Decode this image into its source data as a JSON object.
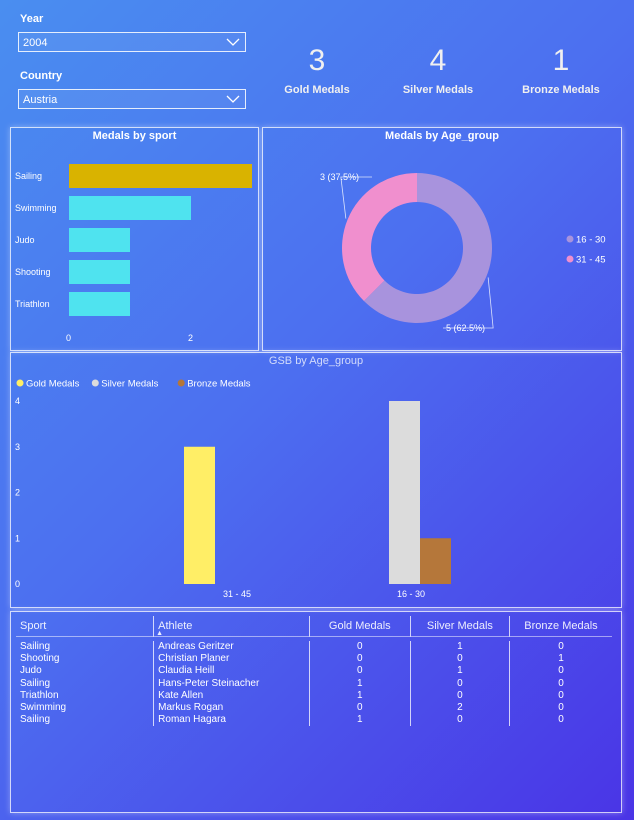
{
  "filters": {
    "year": {
      "label": "Year",
      "value": "2004"
    },
    "country": {
      "label": "Country",
      "value": "Austria"
    }
  },
  "kpis": [
    {
      "value": "3",
      "label": "Gold Medals"
    },
    {
      "value": "4",
      "label": "Silver Medals"
    },
    {
      "value": "1",
      "label": "Bronze Medals"
    }
  ],
  "colors": {
    "sailing_bar": "#d9b300",
    "other_bar": "#4fe3ef",
    "age_16_30": "#a893dd",
    "age_31_45": "#f08fce",
    "gold": "#ffee66",
    "silver": "#dcdcdc",
    "bronze": "#b5773a"
  },
  "medals_by_sport": {
    "title": "Medals by sport",
    "chart_data": {
      "type": "bar",
      "orientation": "horizontal",
      "categories": [
        "Sailing",
        "Swimming",
        "Judo",
        "Shooting",
        "Triathlon"
      ],
      "values": [
        3,
        2,
        1,
        1,
        1
      ],
      "xticks": [
        "0",
        "2"
      ],
      "xlim": [
        0,
        3
      ]
    }
  },
  "medals_by_age": {
    "title": "Medals by Age_group",
    "chart_data": {
      "type": "pie",
      "donut": true,
      "labels": [
        "16 - 30",
        "31 - 45"
      ],
      "values": [
        5,
        3
      ],
      "data_labels": [
        "5 (62.5%)",
        "3 (37.5%)"
      ],
      "legend_position": "right"
    }
  },
  "gsb_by_age": {
    "title": "GSB by Age_group",
    "chart_data": {
      "type": "bar",
      "categories": [
        "31 - 45",
        "16 - 30"
      ],
      "series": [
        {
          "name": "Gold Medals",
          "values": [
            3,
            0
          ]
        },
        {
          "name": "Silver Medals",
          "values": [
            0,
            4
          ]
        },
        {
          "name": "Bronze Medals",
          "values": [
            0,
            1
          ]
        }
      ],
      "yticks": [
        "0",
        "1",
        "2",
        "3",
        "4"
      ],
      "ylim": [
        0,
        4
      ],
      "legend_position": "top-left"
    }
  },
  "table": {
    "columns": [
      "Sport",
      "Athlete",
      "Gold Medals",
      "Silver Medals",
      "Bronze Medals"
    ],
    "sort_indicator": "▲",
    "rows": [
      [
        "Sailing",
        "Andreas Geritzer",
        "0",
        "1",
        "0"
      ],
      [
        "Shooting",
        "Christian Planer",
        "0",
        "0",
        "1"
      ],
      [
        "Judo",
        "Claudia Heill",
        "0",
        "1",
        "0"
      ],
      [
        "Sailing",
        "Hans-Peter Steinacher",
        "1",
        "0",
        "0"
      ],
      [
        "Triathlon",
        "Kate Allen",
        "1",
        "0",
        "0"
      ],
      [
        "Swimming",
        "Markus Rogan",
        "0",
        "2",
        "0"
      ],
      [
        "Sailing",
        "Roman Hagara",
        "1",
        "0",
        "0"
      ]
    ]
  }
}
